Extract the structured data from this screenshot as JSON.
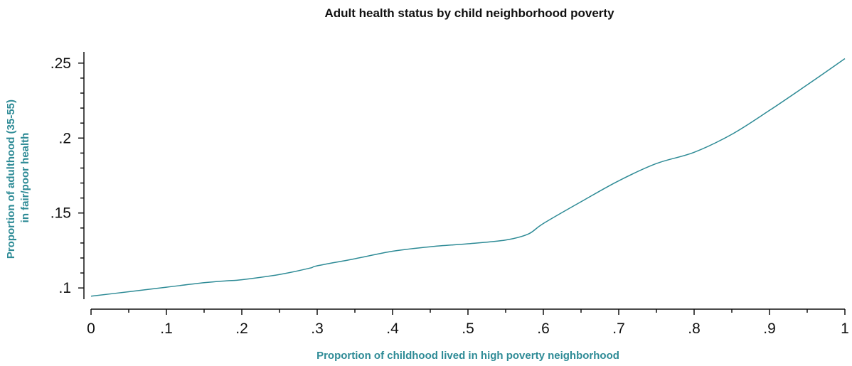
{
  "chart_data": {
    "type": "line",
    "title": "Adult health status by child neighborhood poverty",
    "xlabel": "Proportion of childhood lived in high poverty neighborhood",
    "ylabel_lines": [
      "Proportion of adulthood (35-55)",
      "in fair/poor health"
    ],
    "xlim": [
      0,
      1
    ],
    "ylim": [
      0.0925,
      0.2575
    ],
    "x_ticks": [
      0,
      0.1,
      0.2,
      0.3,
      0.4,
      0.5,
      0.6,
      0.7,
      0.8,
      0.9,
      1
    ],
    "x_tick_labels": [
      "0",
      ".1",
      ".2",
      ".3",
      ".4",
      ".5",
      ".6",
      ".7",
      ".8",
      ".9",
      "1"
    ],
    "y_ticks": [
      0.1,
      0.15,
      0.2,
      0.25
    ],
    "y_tick_labels": [
      ".1",
      ".15",
      ".2",
      ".25"
    ],
    "grid": false,
    "colors": {
      "line": "#2e8b96",
      "axis_title": "#2e8b96",
      "text": "#111111"
    },
    "series": [
      {
        "x": [
          0,
          0.05,
          0.1,
          0.15,
          0.18,
          0.2,
          0.25,
          0.29,
          0.3,
          0.35,
          0.4,
          0.45,
          0.5,
          0.55,
          0.58,
          0.6,
          0.65,
          0.7,
          0.75,
          0.8,
          0.85,
          0.9,
          0.95,
          1.0
        ],
        "y": [
          0.0945,
          0.0975,
          0.1005,
          0.1035,
          0.1048,
          0.1055,
          0.109,
          0.1132,
          0.1148,
          0.1195,
          0.1245,
          0.1275,
          0.1295,
          0.132,
          0.136,
          0.143,
          0.1575,
          0.1715,
          0.183,
          0.1905,
          0.2025,
          0.2185,
          0.2355,
          0.253
        ]
      }
    ]
  }
}
